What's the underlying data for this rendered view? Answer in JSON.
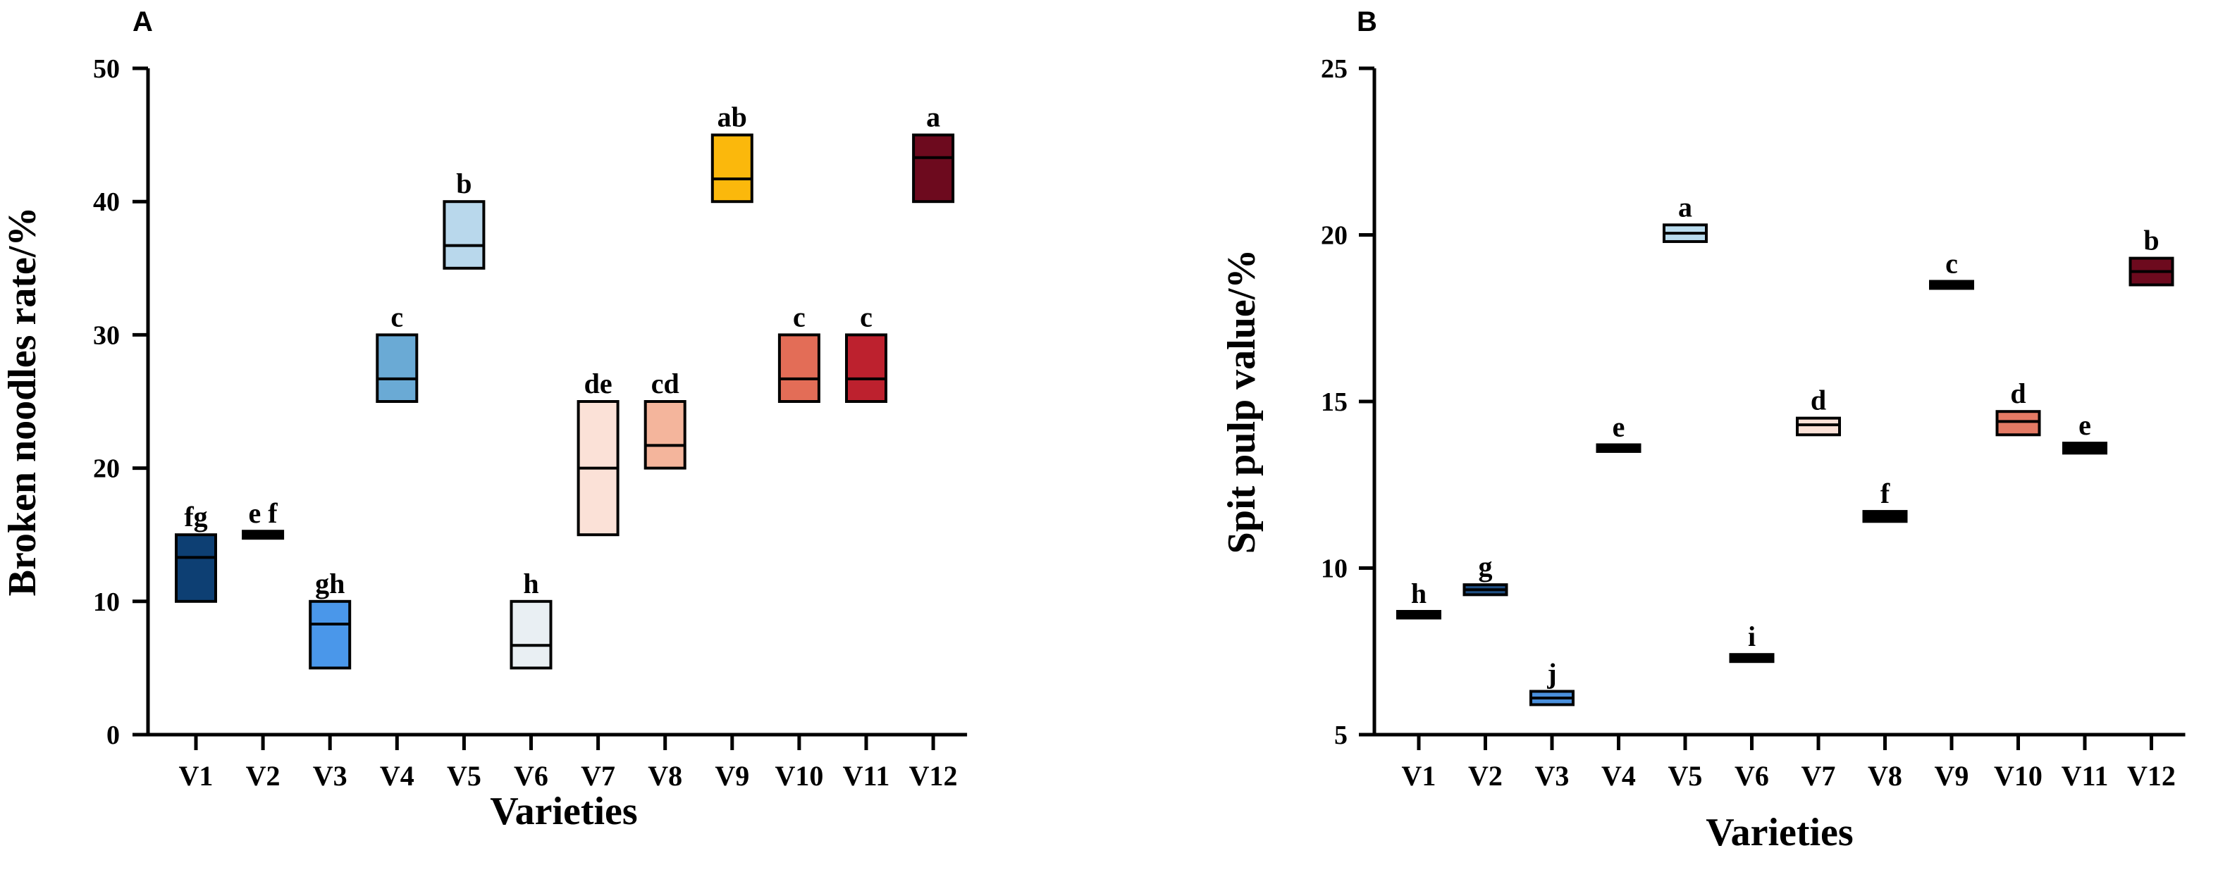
{
  "chart_data": [
    {
      "panel": "A",
      "type": "box",
      "ylabel": "Broken noodles rate/%",
      "xlabel": "Varieties",
      "ylim": [
        0,
        50
      ],
      "yticks": [
        "0",
        "10",
        "20",
        "30",
        "40",
        "50"
      ],
      "categories": [
        "V1",
        "V2",
        "V3",
        "V4",
        "V5",
        "V6",
        "V7",
        "V8",
        "V9",
        "V10",
        "V11",
        "V12"
      ],
      "boxes": [
        {
          "low": 10,
          "high": 15,
          "median": 13.3,
          "color": "#0d3f73",
          "label": "fg"
        },
        {
          "low": 14.9,
          "high": 15.1,
          "median": 15,
          "color": "#000000",
          "label": "e f"
        },
        {
          "low": 5,
          "high": 10,
          "median": 8.3,
          "color": "#4a97ea",
          "label": "gh"
        },
        {
          "low": 25,
          "high": 30,
          "median": 26.7,
          "color": "#6aaad5",
          "label": "c"
        },
        {
          "low": 35,
          "high": 40,
          "median": 36.7,
          "color": "#b9d8ec",
          "label": "b"
        },
        {
          "low": 5,
          "high": 10,
          "median": 6.7,
          "color": "#e9eff3",
          "label": "h"
        },
        {
          "low": 15,
          "high": 25,
          "median": 20,
          "color": "#fbe1d7",
          "label": "de"
        },
        {
          "low": 20,
          "high": 25,
          "median": 21.7,
          "color": "#f4b59c",
          "label": "cd"
        },
        {
          "low": 40,
          "high": 45,
          "median": 41.7,
          "color": "#fbb80c",
          "label": "ab"
        },
        {
          "low": 25,
          "high": 30,
          "median": 26.7,
          "color": "#e36d57",
          "label": "c"
        },
        {
          "low": 25,
          "high": 30,
          "median": 26.7,
          "color": "#bd212e",
          "label": "c"
        },
        {
          "low": 40,
          "high": 45,
          "median": 43.3,
          "color": "#6d0a1e",
          "label": "a"
        }
      ]
    },
    {
      "panel": "B",
      "type": "box",
      "ylabel": "Spit pulp value/%",
      "xlabel": "Varieties",
      "ylim": [
        5,
        25
      ],
      "yticks": [
        "5",
        "10",
        "15",
        "20",
        "25"
      ],
      "categories": [
        "V1",
        "V2",
        "V3",
        "V4",
        "V5",
        "V6",
        "V7",
        "V8",
        "V9",
        "V10",
        "V11",
        "V12"
      ],
      "boxes": [
        {
          "low": 8.5,
          "high": 8.7,
          "median": 8.6,
          "color": "#000000",
          "label": "h"
        },
        {
          "low": 9.2,
          "high": 9.5,
          "median": 9.35,
          "color": "#1f4f84",
          "label": "g"
        },
        {
          "low": 5.9,
          "high": 6.3,
          "median": 6.1,
          "color": "#4a90dd",
          "label": "j"
        },
        {
          "low": 13.5,
          "high": 13.7,
          "median": 13.6,
          "color": "#000000",
          "label": "e"
        },
        {
          "low": 19.8,
          "high": 20.3,
          "median": 20.05,
          "color": "#b9dcef",
          "label": "a"
        },
        {
          "low": 7.25,
          "high": 7.35,
          "median": 7.3,
          "color": "#000000",
          "label": "i"
        },
        {
          "low": 14.0,
          "high": 14.5,
          "median": 14.3,
          "color": "#fbe1d7",
          "label": "d"
        },
        {
          "low": 11.4,
          "high": 11.7,
          "median": 11.55,
          "color": "#000000",
          "label": "f"
        },
        {
          "low": 18.45,
          "high": 18.55,
          "median": 18.5,
          "color": "#000000",
          "label": "c"
        },
        {
          "low": 14.0,
          "high": 14.7,
          "median": 14.4,
          "color": "#e47a64",
          "label": "d"
        },
        {
          "low": 13.45,
          "high": 13.75,
          "median": 13.6,
          "color": "#000000",
          "label": "e"
        },
        {
          "low": 18.5,
          "high": 19.3,
          "median": 18.9,
          "color": "#6d0a1e",
          "label": "b"
        }
      ]
    }
  ]
}
